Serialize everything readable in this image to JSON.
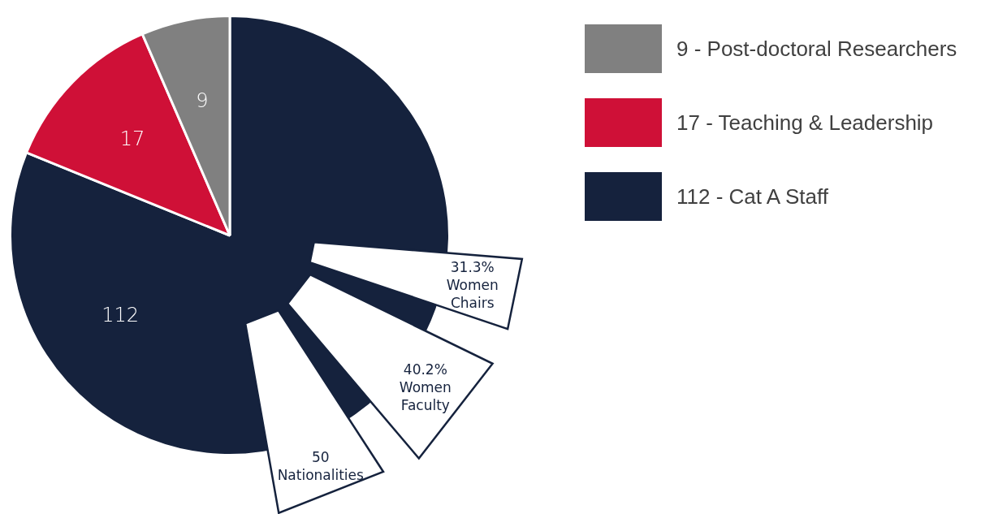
{
  "chart_data": {
    "type": "pie",
    "categories": [
      "9 - Post-doctoral Researchers",
      "17 - Teaching & Leadership",
      "112 - Cat A Staff"
    ],
    "values": [
      9,
      17,
      112
    ],
    "colors": [
      "#808080",
      "#cf1037",
      "#15223d"
    ],
    "data_labels": true,
    "legend": "right",
    "annotations": [
      "31.3% Women Chairs",
      "40.2% Women Faculty",
      "50 Nationalities"
    ]
  }
}
